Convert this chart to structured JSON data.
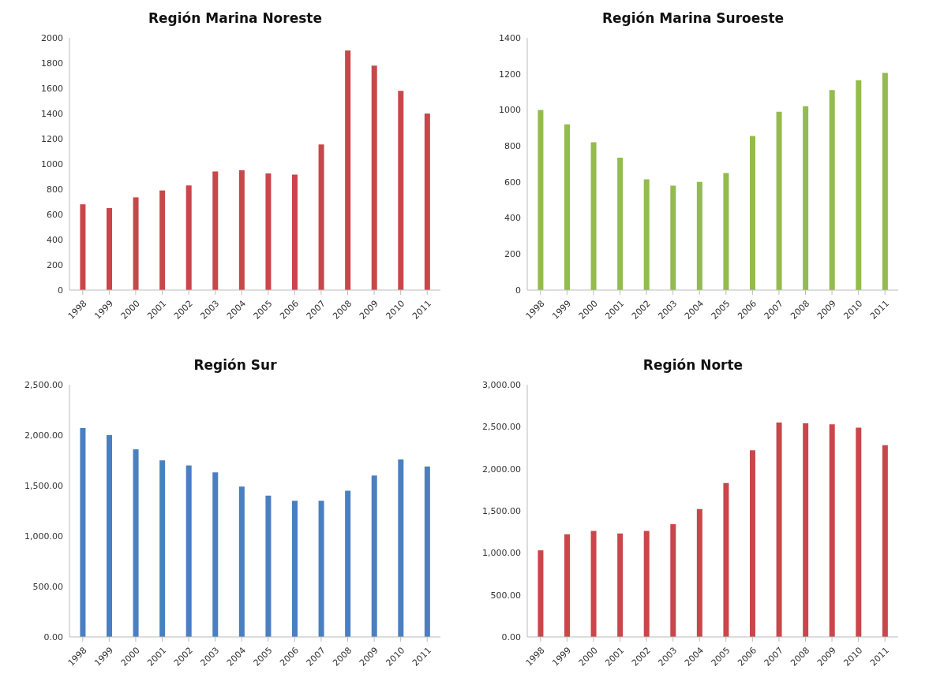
{
  "chart_data": [
    {
      "type": "bar",
      "title": "Región Marina Noreste",
      "categories": [
        "1998",
        "1999",
        "2000",
        "2001",
        "2002",
        "2003",
        "2004",
        "2005",
        "2006",
        "2007",
        "2008",
        "2009",
        "2010",
        "2011"
      ],
      "values": [
        680,
        650,
        735,
        790,
        830,
        940,
        950,
        925,
        915,
        1155,
        1900,
        1780,
        1580,
        1400
      ],
      "color": "#c9474a",
      "ylim": [
        0,
        2000
      ],
      "yticks": [
        0,
        200,
        400,
        600,
        800,
        1000,
        1200,
        1400,
        1600,
        1800,
        2000
      ],
      "grid": false
    },
    {
      "type": "bar",
      "title": "Región Marina Suroeste",
      "categories": [
        "1998",
        "1999",
        "2000",
        "2001",
        "2002",
        "2003",
        "2004",
        "2005",
        "2006",
        "2007",
        "2008",
        "2009",
        "2010",
        "2011"
      ],
      "values": [
        1000,
        920,
        820,
        735,
        615,
        580,
        600,
        650,
        855,
        990,
        1020,
        1110,
        1165,
        1205
      ],
      "color": "#93bb4f",
      "ylim": [
        0,
        1400
      ],
      "yticks": [
        0,
        200,
        400,
        600,
        800,
        1000,
        1200,
        1400
      ],
      "grid": false
    },
    {
      "type": "bar",
      "title": "Región Sur",
      "categories": [
        "1998",
        "1999",
        "2000",
        "2001",
        "2002",
        "2003",
        "2004",
        "2005",
        "2006",
        "2007",
        "2008",
        "2009",
        "2010",
        "2011"
      ],
      "values": [
        2070,
        2000,
        1860,
        1750,
        1700,
        1630,
        1490,
        1400,
        1350,
        1350,
        1450,
        1600,
        1760,
        1690
      ],
      "color": "#4a7fc1",
      "ylim": [
        0,
        2500
      ],
      "yticks": [
        {
          "value": 0,
          "label": "0.00"
        },
        {
          "value": 500,
          "label": "500.00"
        },
        {
          "value": 1000,
          "label": "1,000.00"
        },
        {
          "value": 1500,
          "label": "1,500.00"
        },
        {
          "value": 2000,
          "label": "2,000.00"
        },
        {
          "value": 2500,
          "label": "2,500.00"
        }
      ],
      "grid": false
    },
    {
      "type": "bar",
      "title": "Región Norte",
      "categories": [
        "1998",
        "1999",
        "2000",
        "2001",
        "2002",
        "2003",
        "2004",
        "2005",
        "2006",
        "2007",
        "2008",
        "2009",
        "2010",
        "2011"
      ],
      "values": [
        1030,
        1220,
        1260,
        1230,
        1260,
        1340,
        1520,
        1830,
        2220,
        2550,
        2540,
        2530,
        2490,
        2280
      ],
      "color": "#c9474a",
      "ylim": [
        0,
        3000
      ],
      "yticks": [
        {
          "value": 0,
          "label": "0.00"
        },
        {
          "value": 500,
          "label": "500.00"
        },
        {
          "value": 1000,
          "label": "1,000.00"
        },
        {
          "value": 1500,
          "label": "1,500.00"
        },
        {
          "value": 2000,
          "label": "2,000.00"
        },
        {
          "value": 2500,
          "label": "2,500.00"
        },
        {
          "value": 3000,
          "label": "3,000.00"
        }
      ],
      "grid": false
    }
  ]
}
